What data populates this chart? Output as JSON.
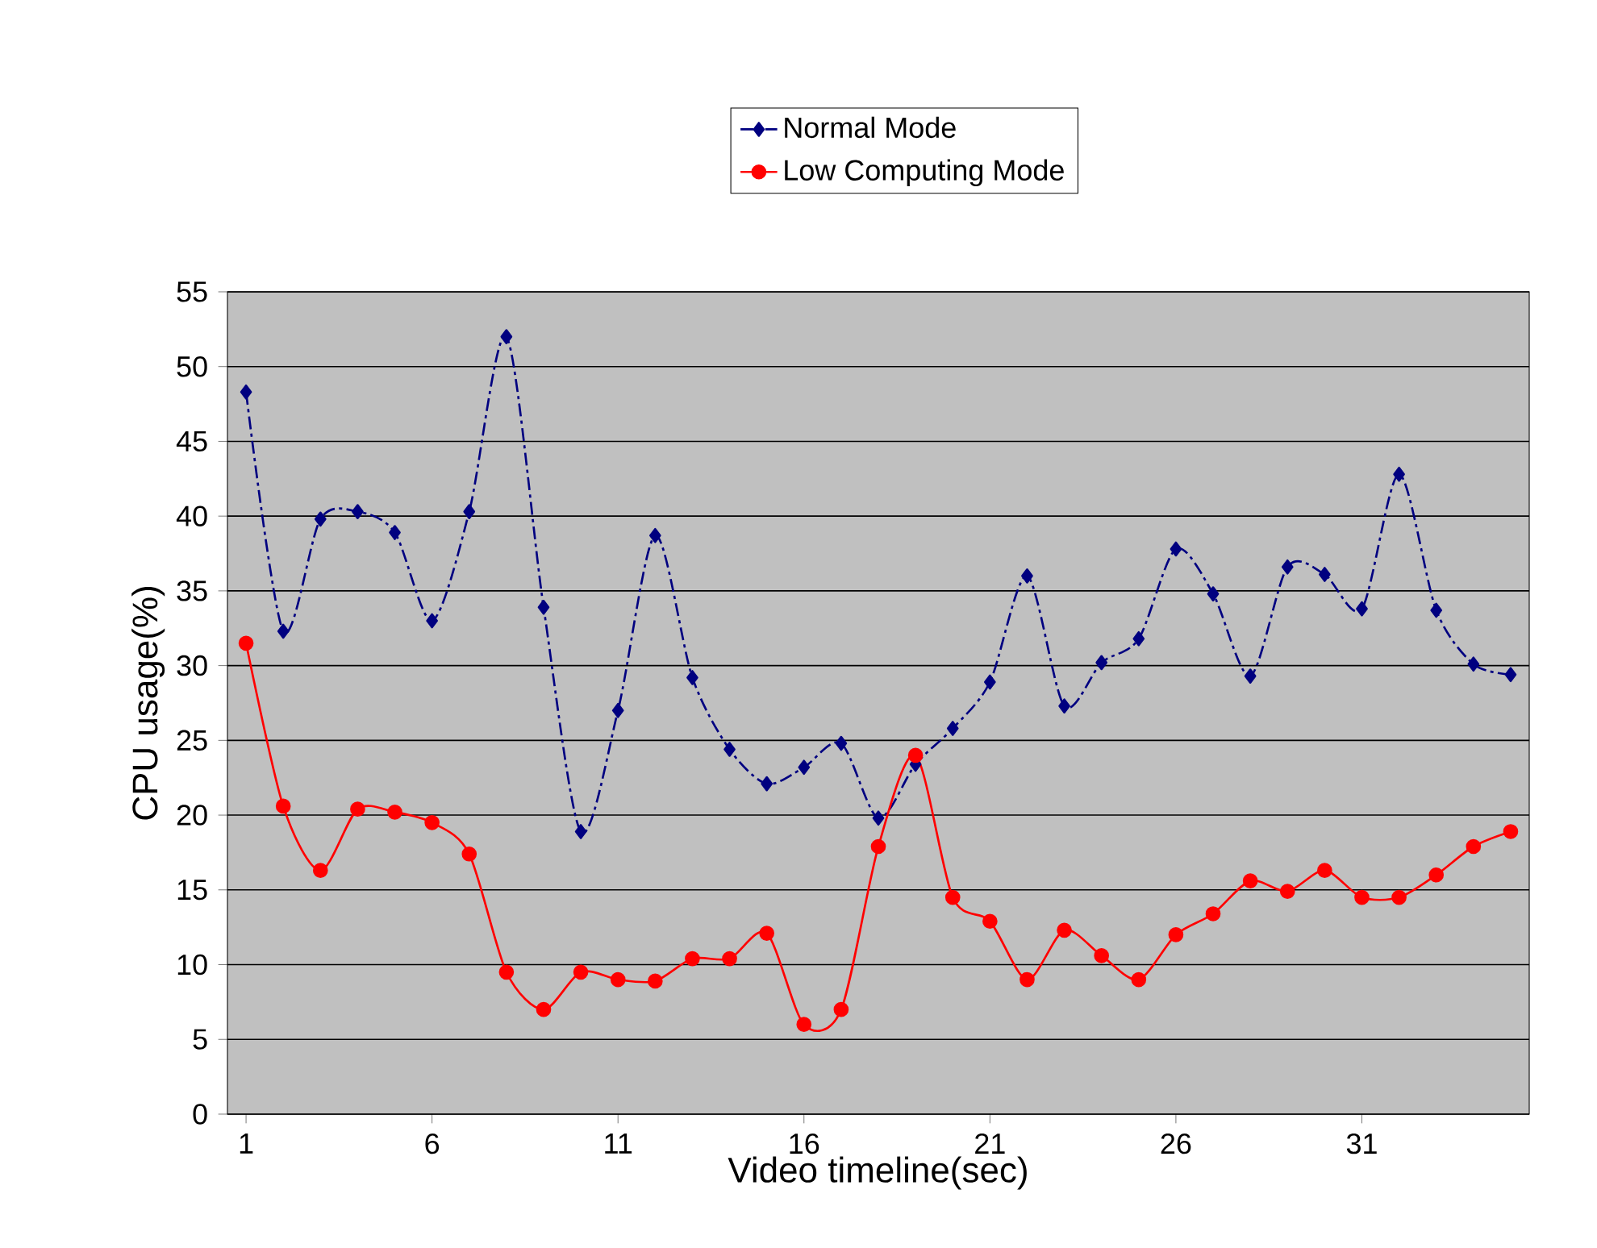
{
  "chart_data": {
    "type": "line",
    "xlabel": "Video timeline(sec)",
    "ylabel": "CPU usage(%)",
    "x": [
      1,
      2,
      3,
      4,
      5,
      6,
      7,
      8,
      9,
      10,
      11,
      12,
      13,
      14,
      15,
      16,
      17,
      18,
      19,
      20,
      21,
      22,
      23,
      24,
      25,
      26,
      27,
      28,
      29,
      30,
      31,
      32,
      33,
      34,
      35
    ],
    "series": [
      {
        "name": "Normal Mode",
        "color": "#000080",
        "marker": "diamond",
        "line_style": "dashed",
        "values": [
          48.3,
          32.3,
          39.8,
          40.3,
          38.9,
          33,
          40.3,
          52,
          33.9,
          18.9,
          27,
          38.7,
          29.2,
          24.4,
          22.1,
          23.2,
          24.8,
          19.8,
          23.4,
          25.8,
          28.9,
          36,
          27.3,
          30.2,
          31.8,
          37.8,
          34.8,
          29.3,
          36.6,
          36.1,
          33.8,
          42.8,
          33.7,
          30.1,
          29.4
        ]
      },
      {
        "name": "Low Computing Mode",
        "color": "#ff0000",
        "marker": "circle",
        "line_style": "solid",
        "values": [
          31.5,
          20.6,
          16.3,
          20.4,
          20.2,
          19.5,
          17.4,
          9.5,
          7,
          9.5,
          9,
          8.9,
          10.4,
          10.4,
          12.1,
          6,
          7,
          17.9,
          24,
          14.5,
          12.9,
          9,
          12.3,
          10.6,
          9,
          12,
          13.4,
          15.6,
          14.9,
          16.3,
          14.5,
          14.5,
          16,
          17.9,
          18.9
        ]
      }
    ],
    "xlim": [
      0.5,
      35.5
    ],
    "xticks": [
      1,
      6,
      11,
      16,
      21,
      26,
      31
    ],
    "ylim": [
      0,
      55
    ],
    "yticks": [
      0,
      5,
      10,
      15,
      20,
      25,
      30,
      35,
      40,
      45,
      50,
      55
    ],
    "grid": "y",
    "legend": "top"
  }
}
